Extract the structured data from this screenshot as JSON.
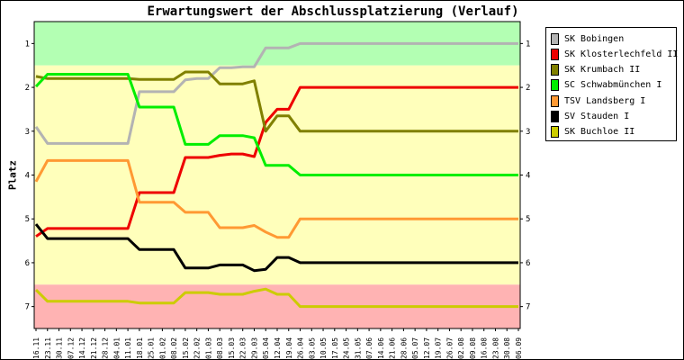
{
  "chart_data": {
    "type": "line",
    "title": "Erwartungswert der Abschlussplatzierung (Verlauf)",
    "ylabel": "Platz",
    "xlabel": "",
    "ylim": [
      7.5,
      0.5
    ],
    "y_ticks": [
      1,
      2,
      3,
      4,
      5,
      6,
      7
    ],
    "y_axis_inverted": true,
    "grid": false,
    "legend_position": "right",
    "bands": [
      {
        "from": 0.5,
        "to": 1.5,
        "color": "#b3ffb3"
      },
      {
        "from": 1.5,
        "to": 6.5,
        "color": "#ffffbb"
      },
      {
        "from": 6.5,
        "to": 7.5,
        "color": "#ffb3b3"
      }
    ],
    "categories": [
      "16.11",
      "23.11",
      "30.11",
      "07.12",
      "14.12",
      "21.12",
      "28.12",
      "04.01",
      "11.01",
      "18.01",
      "25.01",
      "01.02",
      "08.02",
      "15.02",
      "22.02",
      "01.03",
      "08.03",
      "15.03",
      "22.03",
      "29.03",
      "05.04",
      "12.04",
      "19.04",
      "26.04",
      "03.05",
      "10.05",
      "17.05",
      "24.05",
      "31.05",
      "07.06",
      "14.06",
      "21.06",
      "28.06",
      "05.07",
      "12.07",
      "19.07",
      "26.07",
      "02.08",
      "09.08",
      "16.08",
      "23.08",
      "30.08",
      "06.09"
    ],
    "series": [
      {
        "name": "SK Bobingen",
        "color": "#b3b3b3",
        "values": [
          2.9,
          3.28,
          3.28,
          3.28,
          3.28,
          3.28,
          3.28,
          3.28,
          3.28,
          2.1,
          2.1,
          2.1,
          2.1,
          1.83,
          1.8,
          1.8,
          1.55,
          1.55,
          1.53,
          1.53,
          1.1,
          1.1,
          1.1,
          1.0,
          1.0,
          1.0,
          1.0,
          1.0,
          1.0,
          1.0,
          1.0,
          1.0,
          1.0,
          1.0,
          1.0,
          1.0,
          1.0,
          1.0,
          1.0,
          1.0,
          1.0,
          1.0,
          1.0
        ]
      },
      {
        "name": "SK Klosterlechfeld II",
        "color": "#ee0000",
        "values": [
          5.4,
          5.22,
          5.22,
          5.22,
          5.22,
          5.22,
          5.22,
          5.22,
          5.22,
          4.4,
          4.4,
          4.4,
          4.4,
          3.6,
          3.6,
          3.6,
          3.55,
          3.52,
          3.52,
          3.58,
          2.8,
          2.5,
          2.5,
          2.0,
          2.0,
          2.0,
          2.0,
          2.0,
          2.0,
          2.0,
          2.0,
          2.0,
          2.0,
          2.0,
          2.0,
          2.0,
          2.0,
          2.0,
          2.0,
          2.0,
          2.0,
          2.0,
          2.0
        ]
      },
      {
        "name": "SK Krumbach II",
        "color": "#808000",
        "values": [
          1.75,
          1.8,
          1.8,
          1.8,
          1.8,
          1.8,
          1.8,
          1.8,
          1.8,
          1.82,
          1.82,
          1.82,
          1.82,
          1.65,
          1.65,
          1.65,
          1.92,
          1.92,
          1.92,
          1.85,
          3.0,
          2.65,
          2.65,
          3.0,
          3.0,
          3.0,
          3.0,
          3.0,
          3.0,
          3.0,
          3.0,
          3.0,
          3.0,
          3.0,
          3.0,
          3.0,
          3.0,
          3.0,
          3.0,
          3.0,
          3.0,
          3.0,
          3.0
        ]
      },
      {
        "name": "SC Schwabmünchen I",
        "color": "#00ee00",
        "values": [
          1.98,
          1.7,
          1.7,
          1.7,
          1.7,
          1.7,
          1.7,
          1.7,
          1.7,
          2.45,
          2.45,
          2.45,
          2.45,
          3.3,
          3.3,
          3.3,
          3.1,
          3.1,
          3.1,
          3.15,
          3.78,
          3.78,
          3.78,
          4.0,
          4.0,
          4.0,
          4.0,
          4.0,
          4.0,
          4.0,
          4.0,
          4.0,
          4.0,
          4.0,
          4.0,
          4.0,
          4.0,
          4.0,
          4.0,
          4.0,
          4.0,
          4.0,
          4.0
        ]
      },
      {
        "name": "TSV Landsberg I",
        "color": "#ff9933",
        "values": [
          4.15,
          3.67,
          3.67,
          3.67,
          3.67,
          3.67,
          3.67,
          3.67,
          3.67,
          4.62,
          4.62,
          4.62,
          4.62,
          4.85,
          4.85,
          4.85,
          5.2,
          5.2,
          5.2,
          5.15,
          5.3,
          5.42,
          5.42,
          5.0,
          5.0,
          5.0,
          5.0,
          5.0,
          5.0,
          5.0,
          5.0,
          5.0,
          5.0,
          5.0,
          5.0,
          5.0,
          5.0,
          5.0,
          5.0,
          5.0,
          5.0,
          5.0,
          5.0
        ]
      },
      {
        "name": "SV Stauden I",
        "color": "#000000",
        "values": [
          5.12,
          5.45,
          5.45,
          5.45,
          5.45,
          5.45,
          5.45,
          5.45,
          5.45,
          5.7,
          5.7,
          5.7,
          5.7,
          6.12,
          6.12,
          6.12,
          6.05,
          6.05,
          6.05,
          6.18,
          6.15,
          5.88,
          5.88,
          6.0,
          6.0,
          6.0,
          6.0,
          6.0,
          6.0,
          6.0,
          6.0,
          6.0,
          6.0,
          6.0,
          6.0,
          6.0,
          6.0,
          6.0,
          6.0,
          6.0,
          6.0,
          6.0,
          6.0
        ]
      },
      {
        "name": "SK Buchloe II",
        "color": "#cccc00",
        "values": [
          6.62,
          6.88,
          6.88,
          6.88,
          6.88,
          6.88,
          6.88,
          6.88,
          6.88,
          6.92,
          6.92,
          6.92,
          6.92,
          6.68,
          6.68,
          6.68,
          6.72,
          6.72,
          6.72,
          6.65,
          6.6,
          6.72,
          6.72,
          7.0,
          7.0,
          7.0,
          7.0,
          7.0,
          7.0,
          7.0,
          7.0,
          7.0,
          7.0,
          7.0,
          7.0,
          7.0,
          7.0,
          7.0,
          7.0,
          7.0,
          7.0,
          7.0,
          7.0
        ]
      }
    ]
  }
}
